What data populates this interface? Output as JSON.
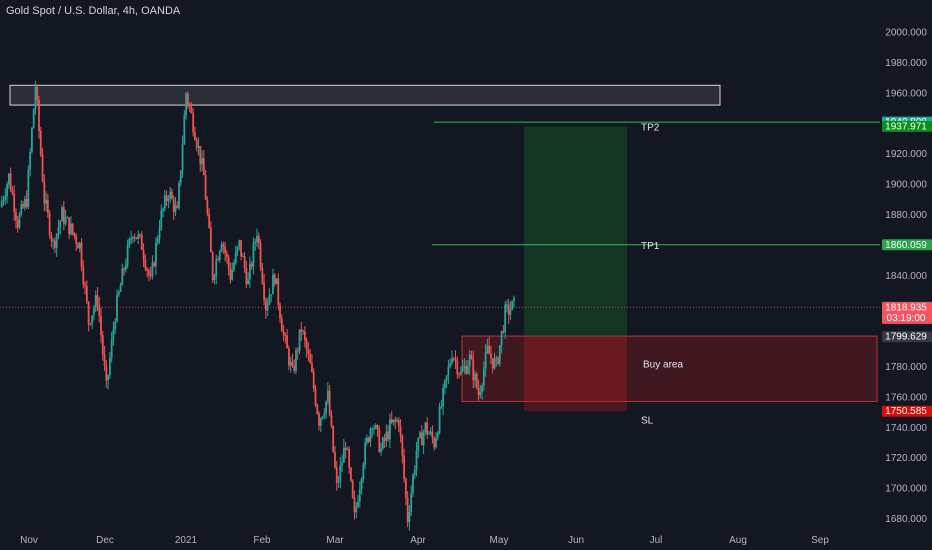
{
  "chart_data": {
    "type": "candlestick",
    "title": "Gold Spot / U.S. Dollar, 4h, OANDA",
    "ylim": [
      1670,
      2010
    ],
    "y_ticks": [
      "2000.000",
      "1980.000",
      "1960.000",
      "1940.000",
      "1920.000",
      "1900.000",
      "1880.000",
      "1860.000",
      "1840.000",
      "1820.000",
      "1800.000",
      "1780.000",
      "1760.000",
      "1740.000",
      "1720.000",
      "1700.000",
      "1680.000"
    ],
    "x_ticks": [
      "Nov",
      "Dec",
      "2021",
      "Feb",
      "Mar",
      "Apr",
      "May",
      "Jun",
      "Jul",
      "Aug",
      "Sep"
    ],
    "price_path": [
      [
        "Nov",
        1885
      ],
      [
        "Nov",
        1905
      ],
      [
        "Nov",
        1875
      ],
      [
        "Nov",
        1890
      ],
      [
        "Nov",
        1965
      ],
      [
        "Nov",
        1890
      ],
      [
        "Nov",
        1860
      ],
      [
        "Nov",
        1880
      ],
      [
        "Nov",
        1870
      ],
      [
        "Nov",
        1860
      ],
      [
        "Nov",
        1810
      ],
      [
        "Nov",
        1825
      ],
      [
        "Dec",
        1765
      ],
      [
        "Dec",
        1815
      ],
      [
        "Dec",
        1845
      ],
      [
        "Dec",
        1870
      ],
      [
        "Dec",
        1860
      ],
      [
        "Dec",
        1835
      ],
      [
        "Dec",
        1875
      ],
      [
        "Dec",
        1895
      ],
      [
        "Dec",
        1880
      ],
      [
        "2021",
        1960
      ],
      [
        "2021",
        1935
      ],
      [
        "2021",
        1905
      ],
      [
        "2021",
        1840
      ],
      [
        "2021",
        1865
      ],
      [
        "2021",
        1840
      ],
      [
        "2021",
        1860
      ],
      [
        "Feb",
        1835
      ],
      [
        "Feb",
        1870
      ],
      [
        "Feb",
        1820
      ],
      [
        "Feb",
        1840
      ],
      [
        "Feb",
        1800
      ],
      [
        "Feb",
        1775
      ],
      [
        "Feb",
        1805
      ],
      [
        "Feb",
        1780
      ],
      [
        "Mar",
        1745
      ],
      [
        "Mar",
        1760
      ],
      [
        "Mar",
        1700
      ],
      [
        "Mar",
        1730
      ],
      [
        "Mar",
        1680
      ],
      [
        "Mar",
        1720
      ],
      [
        "Mar",
        1745
      ],
      [
        "Mar",
        1725
      ],
      [
        "Mar",
        1740
      ],
      [
        "Apr",
        1745
      ],
      [
        "Apr",
        1680
      ],
      [
        "Apr",
        1725
      ],
      [
        "Apr",
        1740
      ],
      [
        "Apr",
        1730
      ],
      [
        "Apr",
        1760
      ],
      [
        "Apr",
        1790
      ],
      [
        "Apr",
        1775
      ],
      [
        "Apr",
        1785
      ],
      [
        "Apr",
        1762
      ],
      [
        "May",
        1790
      ],
      [
        "May",
        1780
      ],
      [
        "May",
        1815
      ],
      [
        "May",
        1820
      ]
    ],
    "zones": [
      {
        "type": "resistance",
        "from": 1952,
        "to": 1965,
        "x_start": "Nov",
        "x_end": "Jul"
      },
      {
        "type": "buy_area",
        "label": "Buy area",
        "from": 1757,
        "to": 1800,
        "x_start": "Apr",
        "x_end": "Sep"
      },
      {
        "type": "target",
        "from": 1799.629,
        "to": 1937.971,
        "x_start": "May",
        "x_end": "Jun"
      },
      {
        "type": "stop",
        "from": 1750.585,
        "to": 1799.629,
        "x_start": "May",
        "x_end": "Jun"
      }
    ],
    "lines": [
      {
        "label": "TP2",
        "value": 1940.808
      },
      {
        "label": "TP1",
        "value": 1860.059
      }
    ],
    "annotations": [
      {
        "text": "TP2",
        "value": 1937.971
      },
      {
        "text": "TP1",
        "value": 1860.059
      },
      {
        "text": "Buy area",
        "value": 1782
      },
      {
        "text": "SL",
        "value": 1745
      }
    ],
    "price_tags": [
      {
        "value": "1940.808",
        "color": "#22ab94"
      },
      {
        "value": "1937.971",
        "color": "#0b8d1f"
      },
      {
        "value": "1860.059",
        "color": "#2aa34a"
      },
      {
        "value": "1818.935",
        "color": "#f7525f",
        "sub": "03:19:00"
      },
      {
        "value": "1799.629",
        "color": "#363a45"
      },
      {
        "value": "1750.585",
        "color": "#d80d0d"
      }
    ],
    "last_price": 1818.935,
    "grid": false
  }
}
